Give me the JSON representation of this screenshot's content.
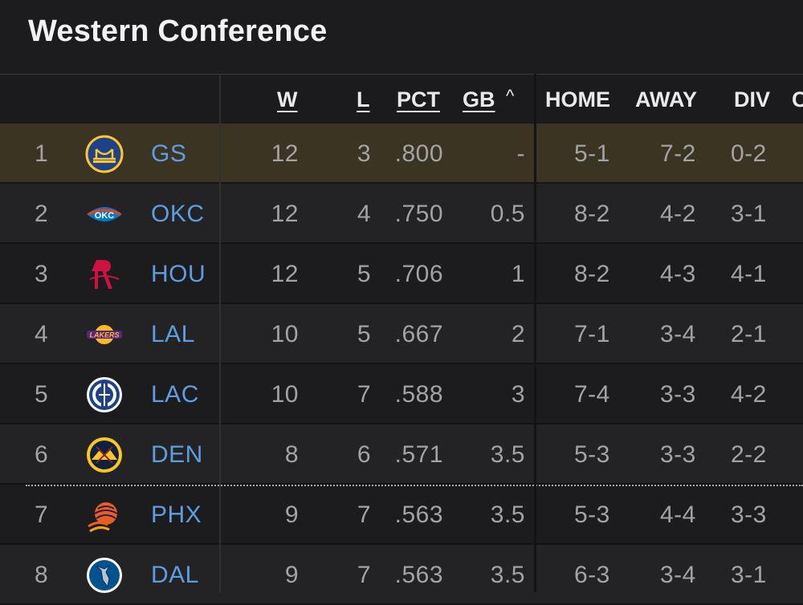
{
  "title": "Western Conference",
  "columns": {
    "w": "W",
    "l": "L",
    "pct": "PCT",
    "gb": "GB",
    "gb_sort_indicator": "^",
    "home": "HOME",
    "away": "AWAY",
    "div": "DIV",
    "conf_partial": "C"
  },
  "rows": [
    {
      "rank": "1",
      "team": "GS",
      "w": "12",
      "l": "3",
      "pct": ".800",
      "gb": "-",
      "home": "5-1",
      "away": "7-2",
      "div": "0-2",
      "logo": "warriors-logo-icon"
    },
    {
      "rank": "2",
      "team": "OKC",
      "w": "12",
      "l": "4",
      "pct": ".750",
      "gb": "0.5",
      "home": "8-2",
      "away": "4-2",
      "div": "3-1",
      "logo": "thunder-logo-icon"
    },
    {
      "rank": "3",
      "team": "HOU",
      "w": "12",
      "l": "5",
      "pct": ".706",
      "gb": "1",
      "home": "8-2",
      "away": "4-3",
      "div": "4-1",
      "logo": "rockets-logo-icon"
    },
    {
      "rank": "4",
      "team": "LAL",
      "w": "10",
      "l": "5",
      "pct": ".667",
      "gb": "2",
      "home": "7-1",
      "away": "3-4",
      "div": "2-1",
      "logo": "lakers-logo-icon"
    },
    {
      "rank": "5",
      "team": "LAC",
      "w": "10",
      "l": "7",
      "pct": ".588",
      "gb": "3",
      "home": "7-4",
      "away": "3-3",
      "div": "4-2",
      "logo": "clippers-logo-icon"
    },
    {
      "rank": "6",
      "team": "DEN",
      "w": "8",
      "l": "6",
      "pct": ".571",
      "gb": "3.5",
      "home": "5-3",
      "away": "3-3",
      "div": "2-2",
      "logo": "nuggets-logo-icon"
    },
    {
      "rank": "7",
      "team": "PHX",
      "w": "9",
      "l": "7",
      "pct": ".563",
      "gb": "3.5",
      "home": "5-3",
      "away": "4-4",
      "div": "3-3",
      "logo": "suns-logo-icon"
    },
    {
      "rank": "8",
      "team": "DAL",
      "w": "9",
      "l": "7",
      "pct": ".563",
      "gb": "3.5",
      "home": "6-3",
      "away": "3-4",
      "div": "3-1",
      "logo": "mavericks-logo-icon"
    }
  ],
  "colors": {
    "background": "#1c1c1e",
    "highlight_row": "#3b3422",
    "team_link": "#5f9de0",
    "header_text": "#e9e9eb"
  }
}
